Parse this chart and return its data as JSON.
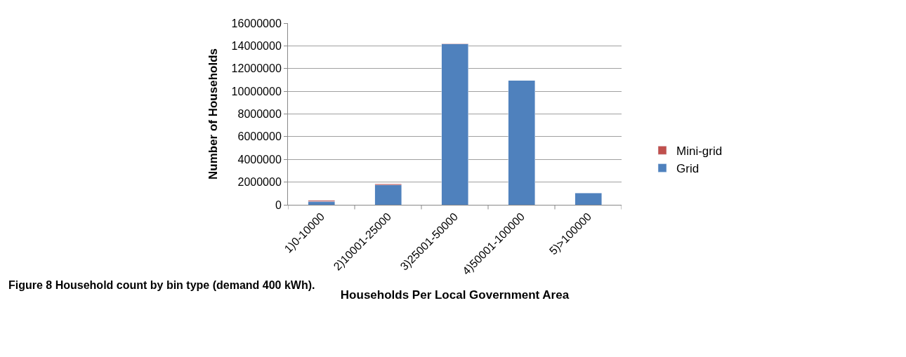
{
  "chart_data": {
    "type": "bar",
    "stacked": true,
    "xlabel": "Households Per Local Government Area",
    "ylabel": "Number of Households",
    "categories": [
      "1)0-10000",
      "2)10001-25000",
      "3)25001-50000",
      "4)50001-100000",
      "5)>100000"
    ],
    "series": [
      {
        "name": "Grid",
        "color": "#4f81bd",
        "values": [
          300000,
          1750000,
          14150000,
          10950000,
          1050000
        ]
      },
      {
        "name": "Mini-grid",
        "color": "#c0504d",
        "values": [
          100000,
          80000,
          50000,
          null,
          null
        ]
      }
    ],
    "ylim": [
      0,
      16000000
    ],
    "yticks": [
      0,
      2000000,
      4000000,
      6000000,
      8000000,
      10000000,
      12000000,
      14000000,
      16000000
    ],
    "grid": "y",
    "legend": "right",
    "annotations": [
      "Figure 8 Household count by bin type (demand 400 kWh)."
    ]
  }
}
